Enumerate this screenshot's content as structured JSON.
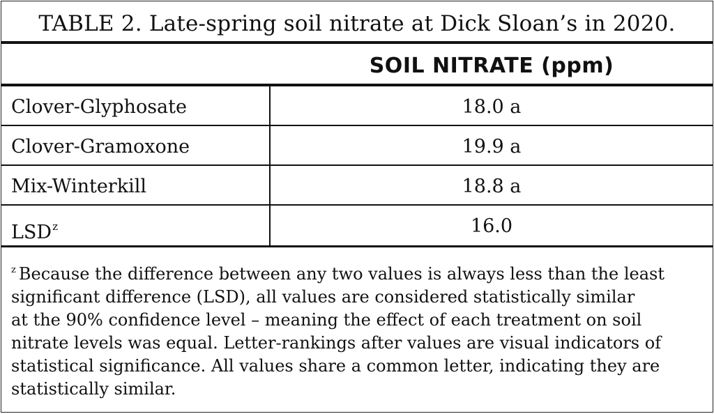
{
  "table": {
    "title": "TABLE 2. Late-spring soil nitrate at Dick Sloan’s in 2020.",
    "header": {
      "treatment": "",
      "value": "SOIL NITRATE (ppm)"
    },
    "rows": [
      {
        "label": "Clover-Glyphosate",
        "value": "18.0 a"
      },
      {
        "label": "Clover-Gramoxone",
        "value": "19.9 a"
      },
      {
        "label": "Mix-Winterkill",
        "value": "18.8 a"
      }
    ],
    "lsd": {
      "label": "LSD",
      "marker": "z",
      "value": "16.0"
    }
  },
  "footnote": {
    "marker": "z",
    "lines": [
      "Because the difference between any two values is always less than the least",
      "significant difference (LSD), all values are considered statistically similar",
      "at the 90% confidence level – meaning the effect of each treatment on soil",
      "nitrate levels was equal. Letter-rankings after values are visual indicators of",
      "statistical significance. All values share a common letter, indicating they are",
      "statistically similar."
    ]
  }
}
